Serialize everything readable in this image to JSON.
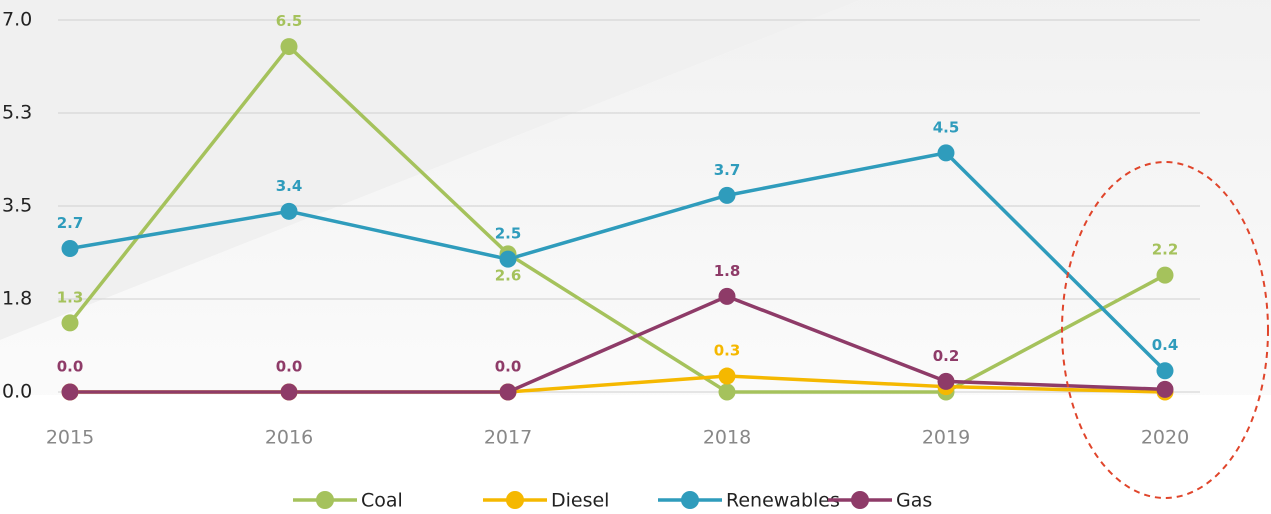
{
  "chart_data": {
    "type": "line",
    "categories": [
      "2015",
      "2016",
      "2017",
      "2018",
      "2019",
      "2020"
    ],
    "series": [
      {
        "name": "Coal",
        "color": "#a5c25c",
        "values": [
          1.3,
          6.5,
          2.6,
          0,
          0,
          2.2
        ],
        "value_labels": [
          "1.3",
          "6.5",
          "2.6",
          null,
          null,
          "2.2"
        ]
      },
      {
        "name": "Diesel",
        "color": "#f5b800",
        "values": [
          0,
          0,
          0,
          0.3,
          0.1,
          0
        ],
        "value_labels": [
          null,
          null,
          null,
          "0.3",
          null,
          null
        ]
      },
      {
        "name": "Renewables",
        "color": "#2f9cbc",
        "values": [
          2.7,
          3.4,
          2.5,
          3.7,
          4.5,
          0.4
        ],
        "value_labels": [
          "2.7",
          "3.4",
          "2.5",
          "3.7",
          "4.5",
          "0.4"
        ]
      },
      {
        "name": "Gas",
        "color": "#8e3b68",
        "values": [
          0,
          0,
          0,
          1.8,
          0.2,
          0.05
        ],
        "value_labels": [
          "0.0",
          "0.0",
          "0.0",
          "1.8",
          "0.2",
          null
        ]
      }
    ],
    "ylim": [
      0,
      7
    ],
    "yticks": [
      {
        "value": 0,
        "label": "0.0"
      },
      {
        "value": 1.75,
        "label": "1.8"
      },
      {
        "value": 3.5,
        "label": "3.5"
      },
      {
        "value": 5.25,
        "label": "5.3"
      },
      {
        "value": 7,
        "label": "7.0"
      }
    ],
    "grid": true
  }
}
